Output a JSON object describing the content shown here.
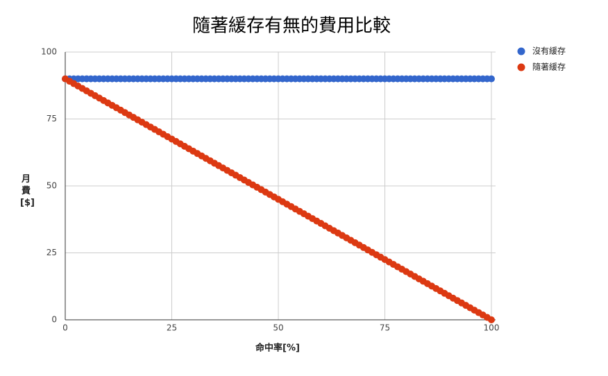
{
  "chart_data": {
    "type": "scatter",
    "title": "隨著緩存有無的費用比較",
    "x_label": "命中率[%]",
    "y_label": "月費[$]",
    "x": [
      0,
      1,
      2,
      3,
      4,
      5,
      6,
      7,
      8,
      9,
      10,
      11,
      12,
      13,
      14,
      15,
      16,
      17,
      18,
      19,
      20,
      21,
      22,
      23,
      24,
      25,
      26,
      27,
      28,
      29,
      30,
      31,
      32,
      33,
      34,
      35,
      36,
      37,
      38,
      39,
      40,
      41,
      42,
      43,
      44,
      45,
      46,
      47,
      48,
      49,
      50,
      51,
      52,
      53,
      54,
      55,
      56,
      57,
      58,
      59,
      60,
      61,
      62,
      63,
      64,
      65,
      66,
      67,
      68,
      69,
      70,
      71,
      72,
      73,
      74,
      75,
      76,
      77,
      78,
      79,
      80,
      81,
      82,
      83,
      84,
      85,
      86,
      87,
      88,
      89,
      90,
      91,
      92,
      93,
      94,
      95,
      96,
      97,
      98,
      99,
      100
    ],
    "series": [
      {
        "name": "沒有緩存",
        "color": "#3366cc",
        "values": [
          90,
          90,
          90,
          90,
          90,
          90,
          90,
          90,
          90,
          90,
          90,
          90,
          90,
          90,
          90,
          90,
          90,
          90,
          90,
          90,
          90,
          90,
          90,
          90,
          90,
          90,
          90,
          90,
          90,
          90,
          90,
          90,
          90,
          90,
          90,
          90,
          90,
          90,
          90,
          90,
          90,
          90,
          90,
          90,
          90,
          90,
          90,
          90,
          90,
          90,
          90,
          90,
          90,
          90,
          90,
          90,
          90,
          90,
          90,
          90,
          90,
          90,
          90,
          90,
          90,
          90,
          90,
          90,
          90,
          90,
          90,
          90,
          90,
          90,
          90,
          90,
          90,
          90,
          90,
          90,
          90,
          90,
          90,
          90,
          90,
          90,
          90,
          90,
          90,
          90,
          90,
          90,
          90,
          90,
          90,
          90,
          90,
          90,
          90,
          90,
          90
        ]
      },
      {
        "name": "隨著緩存",
        "color": "#dc3912",
        "values": [
          90,
          89.1,
          88.2,
          87.3,
          86.4,
          85.5,
          84.6,
          83.7,
          82.8,
          81.9,
          81,
          80.1,
          79.2,
          78.3,
          77.4,
          76.5,
          75.6,
          74.7,
          73.8,
          72.9,
          72,
          71.1,
          70.2,
          69.3,
          68.4,
          67.5,
          66.6,
          65.7,
          64.8,
          63.9,
          63,
          62.1,
          61.2,
          60.3,
          59.4,
          58.5,
          57.6,
          56.7,
          55.8,
          54.9,
          54,
          53.1,
          52.2,
          51.3,
          50.4,
          49.5,
          48.6,
          47.7,
          46.8,
          45.9,
          45,
          44.1,
          43.2,
          42.3,
          41.4,
          40.5,
          39.6,
          38.7,
          37.8,
          36.9,
          36,
          35.1,
          34.2,
          33.3,
          32.4,
          31.5,
          30.6,
          29.7,
          28.8,
          27.9,
          27,
          26.1,
          25.2,
          24.3,
          23.4,
          22.5,
          21.6,
          20.7,
          19.8,
          18.9,
          18,
          17.1,
          16.2,
          15.3,
          14.4,
          13.5,
          12.6,
          11.7,
          10.8,
          9.9,
          9,
          8.1,
          7.2,
          6.3,
          5.4,
          4.5,
          3.6,
          2.7,
          1.8,
          0.9,
          0
        ]
      }
    ],
    "xlim": [
      0,
      100
    ],
    "xticks": [
      0,
      25,
      50,
      75,
      100
    ],
    "ylim": [
      0,
      100
    ],
    "yticks": [
      0,
      25,
      50,
      75,
      100
    ],
    "grid": true,
    "legend": "right"
  }
}
